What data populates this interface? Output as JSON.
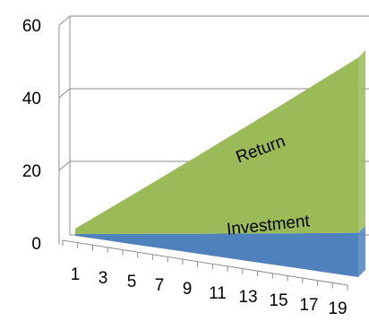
{
  "chart_data": {
    "type": "area",
    "style": "3d-stacked",
    "x": [
      1,
      2,
      3,
      4,
      5,
      6,
      7,
      8,
      9,
      10,
      11,
      12,
      13,
      14,
      15,
      16,
      17,
      18,
      19,
      20
    ],
    "x_tick_labels": [
      "1",
      "3",
      "5",
      "7",
      "9",
      "11",
      "13",
      "15",
      "17",
      "19"
    ],
    "y_ticks": [
      "0",
      "20",
      "40",
      "60"
    ],
    "ylim": [
      0,
      60
    ],
    "grid": true,
    "legend": "none",
    "series": [
      {
        "name": "Investment",
        "color": "#4f81bd",
        "values": [
          0.5,
          1.1,
          1.7,
          2.3,
          2.9,
          3.5,
          4.1,
          4.7,
          5.3,
          5.9,
          6.5,
          7.1,
          7.7,
          8.3,
          8.9,
          9.5,
          10.1,
          10.7,
          11.3,
          11.9
        ]
      },
      {
        "name": "Return",
        "color": "#9bbb59",
        "values": [
          1.5,
          3.9,
          6.3,
          8.7,
          11.1,
          13.5,
          15.9,
          18.3,
          20.7,
          23.1,
          25.5,
          27.9,
          30.3,
          32.7,
          35.1,
          37.5,
          39.9,
          42.3,
          44.7,
          47.1
        ]
      }
    ]
  }
}
